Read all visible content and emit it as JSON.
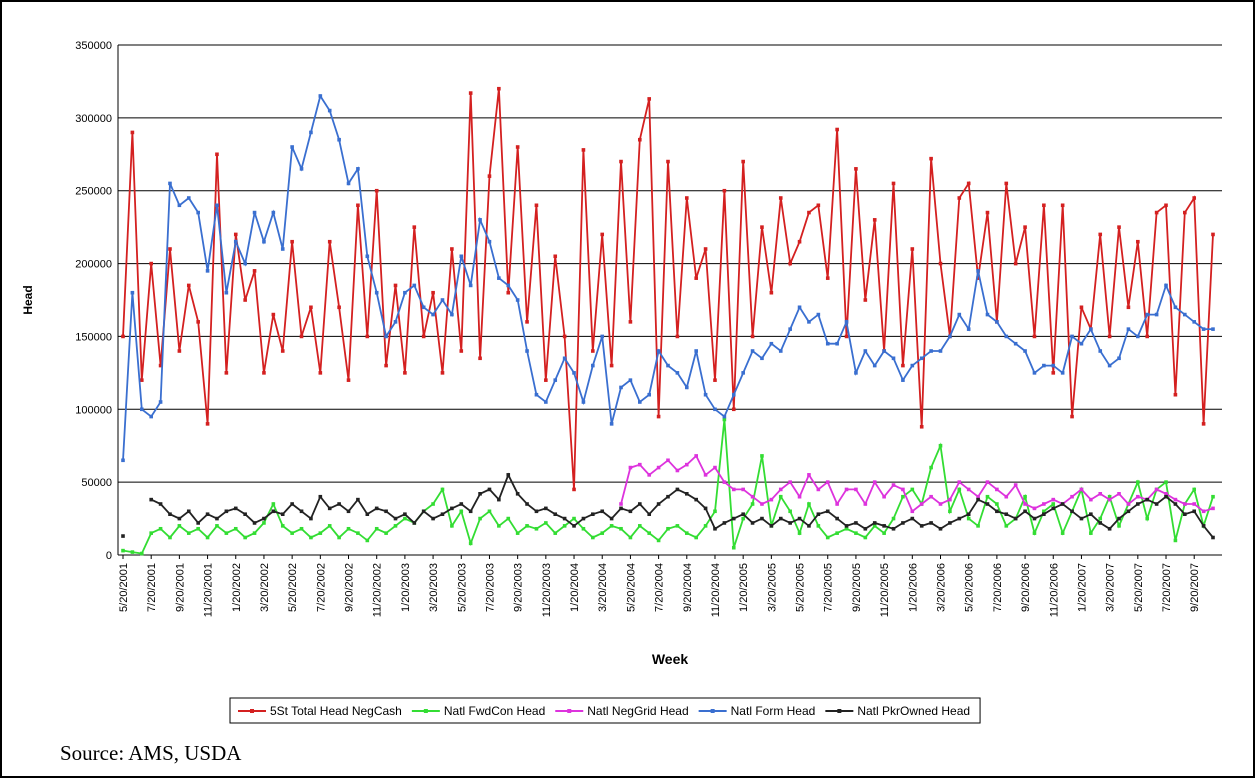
{
  "chart_data": {
    "type": "line",
    "x_label": "Week",
    "y_label": "Head",
    "source": "Source: AMS, USDA",
    "ylim": [
      0,
      350000
    ],
    "yticks": [
      0,
      50000,
      100000,
      150000,
      200000,
      250000,
      300000,
      350000
    ],
    "grid": true,
    "legend": "bottom",
    "categories": [
      "5/20/2001",
      null,
      null,
      "7/20/2001",
      null,
      null,
      "9/20/2001",
      null,
      null,
      "11/20/2001",
      null,
      null,
      "1/20/2002",
      null,
      null,
      "3/20/2002",
      null,
      null,
      "5/20/2002",
      null,
      null,
      "7/20/2002",
      null,
      null,
      "9/20/2002",
      null,
      null,
      "11/20/2002",
      null,
      null,
      "1/20/2003",
      null,
      null,
      "3/20/2003",
      null,
      null,
      "5/20/2003",
      null,
      null,
      "7/20/2003",
      null,
      null,
      "9/20/2003",
      null,
      null,
      "11/20/2003",
      null,
      null,
      "1/20/2004",
      null,
      null,
      "3/20/2004",
      null,
      null,
      "5/20/2004",
      null,
      null,
      "7/20/2004",
      null,
      null,
      "9/20/2004",
      null,
      null,
      "11/20/2004",
      null,
      null,
      "1/20/2005",
      null,
      null,
      "3/20/2005",
      null,
      null,
      "5/20/2005",
      null,
      null,
      "7/20/2005",
      null,
      null,
      "9/20/2005",
      null,
      null,
      "11/20/2005",
      null,
      null,
      "1/20/2006",
      null,
      null,
      "3/20/2006",
      null,
      null,
      "5/20/2006",
      null,
      null,
      "7/20/2006",
      null,
      null,
      "9/20/2006",
      null,
      null,
      "11/20/2006",
      null,
      null,
      "1/20/2007",
      null,
      null,
      "3/20/2007",
      null,
      null,
      "5/20/2007",
      null,
      null,
      "7/20/2007",
      null,
      null,
      "9/20/2007",
      null,
      null
    ],
    "series": [
      {
        "name": "5St Total Head NegCash",
        "color": "#d42020",
        "values": [
          150000,
          290000,
          120000,
          200000,
          130000,
          210000,
          140000,
          185000,
          160000,
          90000,
          275000,
          125000,
          220000,
          175000,
          195000,
          125000,
          165000,
          140000,
          215000,
          150000,
          170000,
          125000,
          215000,
          170000,
          120000,
          240000,
          150000,
          250000,
          130000,
          185000,
          125000,
          225000,
          150000,
          180000,
          125000,
          210000,
          140000,
          317000,
          135000,
          260000,
          320000,
          180000,
          280000,
          160000,
          240000,
          120000,
          205000,
          150000,
          45000,
          278000,
          140000,
          220000,
          130000,
          270000,
          160000,
          285000,
          313000,
          95000,
          270000,
          150000,
          245000,
          190000,
          210000,
          120000,
          250000,
          100000,
          270000,
          150000,
          225000,
          180000,
          245000,
          200000,
          215000,
          235000,
          240000,
          190000,
          292000,
          150000,
          265000,
          175000,
          230000,
          140000,
          255000,
          130000,
          210000,
          88000,
          272000,
          200000,
          150000,
          245000,
          255000,
          190000,
          235000,
          160000,
          255000,
          200000,
          225000,
          150000,
          240000,
          125000,
          240000,
          95000,
          170000,
          155000,
          220000,
          150000,
          225000,
          170000,
          215000,
          150000,
          235000,
          240000,
          110000,
          235000,
          245000,
          90000,
          220000
        ]
      },
      {
        "name": "Natl FwdCon Head",
        "color": "#33dd33",
        "values": [
          3000,
          2000,
          1000,
          15000,
          18000,
          12000,
          20000,
          15000,
          18000,
          12000,
          20000,
          15000,
          18000,
          12000,
          15000,
          22000,
          35000,
          20000,
          15000,
          18000,
          12000,
          15000,
          20000,
          12000,
          18000,
          15000,
          10000,
          18000,
          15000,
          20000,
          25000,
          22000,
          30000,
          35000,
          45000,
          20000,
          30000,
          8000,
          25000,
          30000,
          20000,
          25000,
          15000,
          20000,
          18000,
          22000,
          15000,
          20000,
          25000,
          18000,
          12000,
          15000,
          20000,
          18000,
          12000,
          20000,
          15000,
          10000,
          18000,
          20000,
          15000,
          12000,
          20000,
          30000,
          93000,
          5000,
          25000,
          35000,
          68000,
          20000,
          40000,
          30000,
          15000,
          35000,
          20000,
          12000,
          15000,
          18000,
          15000,
          12000,
          20000,
          15000,
          25000,
          40000,
          45000,
          35000,
          60000,
          75000,
          30000,
          45000,
          25000,
          20000,
          40000,
          35000,
          20000,
          25000,
          40000,
          15000,
          30000,
          35000,
          15000,
          30000,
          45000,
          15000,
          25000,
          40000,
          20000,
          35000,
          50000,
          25000,
          45000,
          50000,
          10000,
          35000,
          45000,
          20000,
          40000
        ]
      },
      {
        "name": "Natl NegGrid Head",
        "color": "#dd33dd",
        "values": [
          null,
          null,
          null,
          null,
          null,
          null,
          null,
          null,
          null,
          null,
          null,
          null,
          null,
          null,
          null,
          null,
          null,
          null,
          null,
          null,
          null,
          null,
          null,
          null,
          null,
          null,
          null,
          null,
          null,
          null,
          null,
          null,
          null,
          null,
          null,
          null,
          null,
          null,
          null,
          null,
          null,
          null,
          null,
          null,
          null,
          null,
          null,
          null,
          null,
          null,
          null,
          null,
          null,
          35000,
          60000,
          62000,
          55000,
          60000,
          65000,
          58000,
          62000,
          68000,
          55000,
          60000,
          50000,
          45000,
          45000,
          40000,
          35000,
          38000,
          45000,
          50000,
          40000,
          55000,
          45000,
          50000,
          35000,
          45000,
          45000,
          35000,
          50000,
          40000,
          48000,
          45000,
          30000,
          35000,
          40000,
          35000,
          38000,
          50000,
          45000,
          40000,
          50000,
          45000,
          40000,
          48000,
          35000,
          32000,
          35000,
          38000,
          35000,
          40000,
          45000,
          38000,
          42000,
          38000,
          42000,
          35000,
          40000,
          38000,
          45000,
          42000,
          38000,
          35000,
          35000,
          30000,
          32000
        ]
      },
      {
        "name": "Natl Form Head",
        "color": "#3a6fd0",
        "values": [
          65000,
          180000,
          100000,
          95000,
          105000,
          255000,
          240000,
          245000,
          235000,
          195000,
          240000,
          180000,
          215000,
          200000,
          235000,
          215000,
          235000,
          210000,
          280000,
          265000,
          290000,
          315000,
          305000,
          285000,
          255000,
          265000,
          205000,
          180000,
          150000,
          160000,
          180000,
          185000,
          170000,
          165000,
          175000,
          165000,
          205000,
          185000,
          230000,
          215000,
          190000,
          185000,
          175000,
          140000,
          110000,
          105000,
          120000,
          135000,
          125000,
          105000,
          130000,
          150000,
          90000,
          115000,
          120000,
          105000,
          110000,
          140000,
          130000,
          125000,
          115000,
          140000,
          110000,
          100000,
          95000,
          110000,
          125000,
          140000,
          135000,
          145000,
          140000,
          155000,
          170000,
          160000,
          165000,
          145000,
          145000,
          160000,
          125000,
          140000,
          130000,
          140000,
          135000,
          120000,
          130000,
          135000,
          140000,
          140000,
          150000,
          165000,
          155000,
          195000,
          165000,
          160000,
          150000,
          145000,
          140000,
          125000,
          130000,
          130000,
          125000,
          150000,
          145000,
          155000,
          140000,
          130000,
          135000,
          155000,
          150000,
          165000,
          165000,
          185000,
          170000,
          165000,
          160000,
          155000,
          155000
        ]
      },
      {
        "name": "Natl PkrOwned Head",
        "color": "#222222",
        "values": [
          13000,
          null,
          null,
          38000,
          35000,
          28000,
          25000,
          30000,
          22000,
          28000,
          25000,
          30000,
          32000,
          28000,
          22000,
          25000,
          30000,
          28000,
          35000,
          30000,
          25000,
          40000,
          32000,
          35000,
          30000,
          38000,
          28000,
          32000,
          30000,
          25000,
          28000,
          22000,
          30000,
          25000,
          28000,
          32000,
          35000,
          30000,
          42000,
          45000,
          38000,
          55000,
          42000,
          35000,
          30000,
          32000,
          28000,
          25000,
          20000,
          25000,
          28000,
          30000,
          25000,
          32000,
          30000,
          35000,
          28000,
          35000,
          40000,
          45000,
          42000,
          38000,
          32000,
          18000,
          22000,
          25000,
          28000,
          22000,
          25000,
          20000,
          25000,
          22000,
          25000,
          20000,
          28000,
          30000,
          25000,
          20000,
          22000,
          18000,
          22000,
          20000,
          18000,
          22000,
          25000,
          20000,
          22000,
          18000,
          22000,
          25000,
          28000,
          38000,
          35000,
          30000,
          28000,
          25000,
          30000,
          25000,
          28000,
          32000,
          35000,
          30000,
          25000,
          28000,
          22000,
          18000,
          25000,
          30000,
          35000,
          38000,
          35000,
          40000,
          35000,
          28000,
          30000,
          20000,
          12000
        ]
      }
    ]
  }
}
